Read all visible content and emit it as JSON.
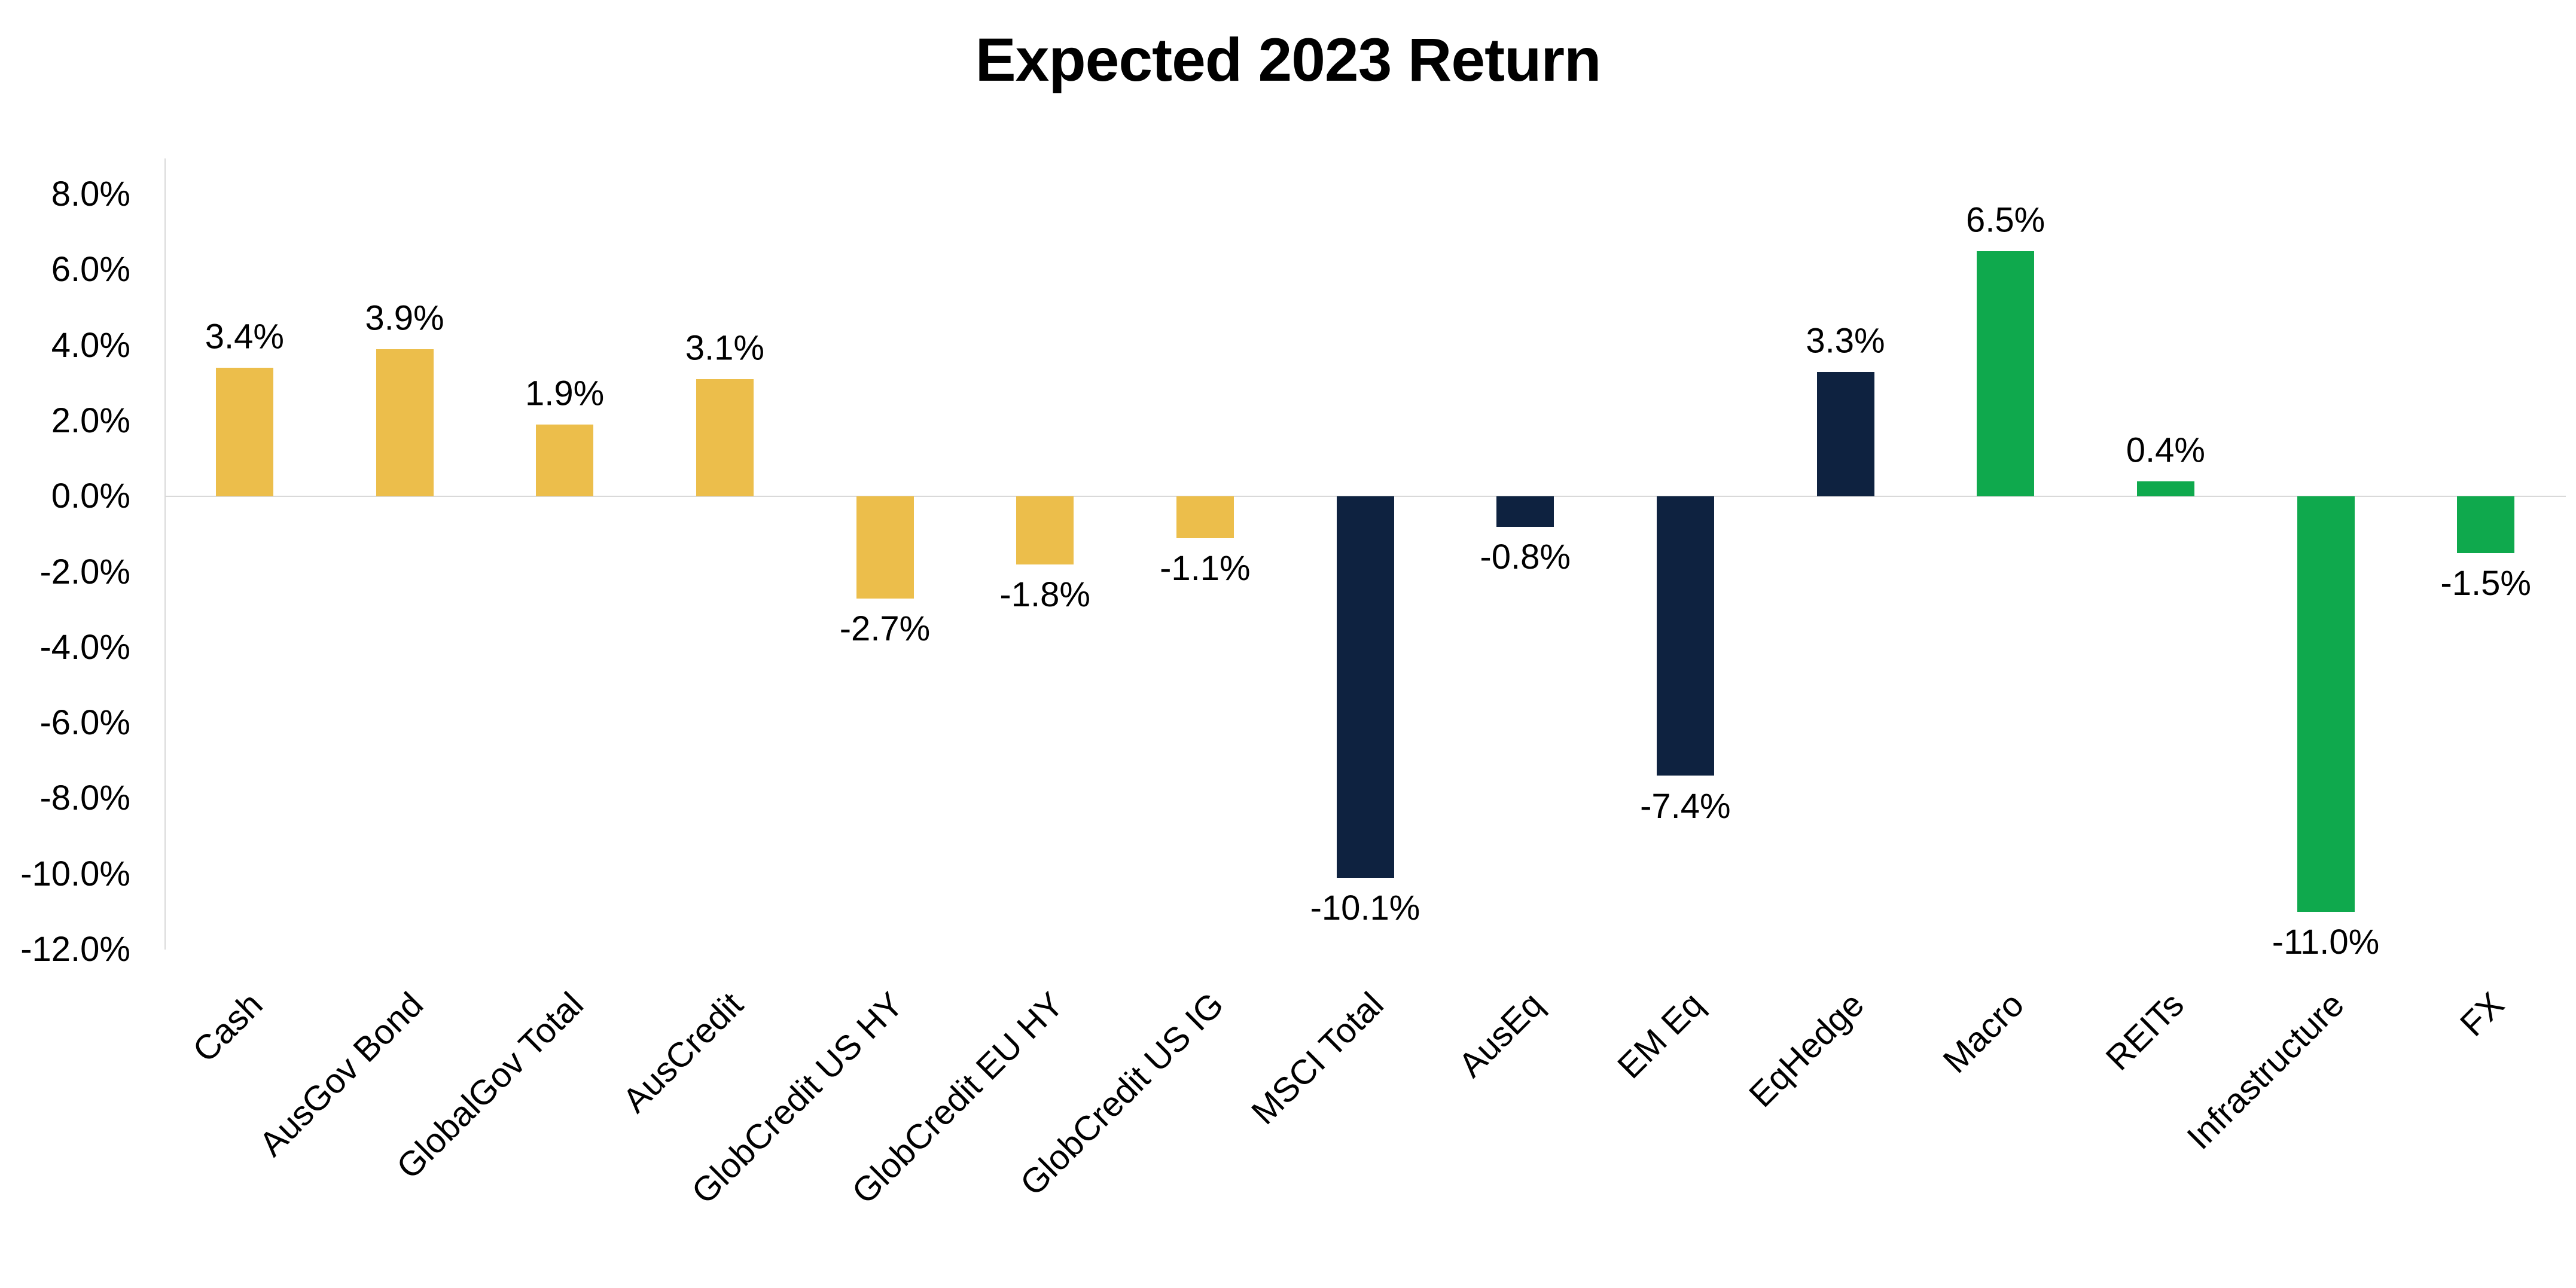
{
  "title": "Expected 2023 Return",
  "chart_data": {
    "type": "bar",
    "title": "Expected 2023 Return",
    "categories": [
      "Cash",
      "AusGov Bond",
      "GlobalGov Total",
      "AusCredit",
      "GlobCredit US HY",
      "GlobCredit EU HY",
      "GlobCredit US IG",
      "MSCI Total",
      "AusEq",
      "EM Eq",
      "EqHedge",
      "Macro",
      "REITs",
      "Infrastructure",
      "FX"
    ],
    "values": [
      3.4,
      3.9,
      1.9,
      3.1,
      -2.7,
      -1.8,
      -1.1,
      -10.1,
      -0.8,
      -7.4,
      3.3,
      6.5,
      0.4,
      -11.0,
      -1.5
    ],
    "labels": [
      "3.4%",
      "3.9%",
      "1.9%",
      "3.1%",
      "-2.7%",
      "-1.8%",
      "-1.1%",
      "-10.1%",
      "-0.8%",
      "-7.4%",
      "3.3%",
      "6.5%",
      "0.4%",
      "-11.0%",
      "-1.5%"
    ],
    "bar_colors": [
      "gold",
      "gold",
      "gold",
      "gold",
      "gold",
      "gold",
      "gold",
      "navy",
      "navy",
      "navy",
      "navy",
      "green",
      "green",
      "green",
      "green"
    ],
    "palette": {
      "gold": "#ECBE4B",
      "navy": "#0E2240",
      "green": "#0FA94D"
    },
    "y_ticks": [
      "8.0%",
      "6.0%",
      "4.0%",
      "2.0%",
      "0.0%",
      "-2.0%",
      "-4.0%",
      "-6.0%",
      "-8.0%",
      "-10.0%",
      "-12.0%"
    ],
    "y_tick_values": [
      8,
      6,
      4,
      2,
      0,
      -2,
      -4,
      -6,
      -8,
      -10,
      -12
    ],
    "ylim": [
      -12,
      8
    ],
    "xlabel": "",
    "ylabel": "",
    "grid": false,
    "legend": "none",
    "unit": "%"
  }
}
